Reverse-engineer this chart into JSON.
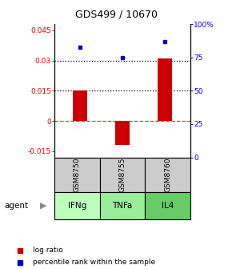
{
  "title": "GDS499 / 10670",
  "samples": [
    "GSM8750",
    "GSM8755",
    "GSM8760"
  ],
  "agents": [
    "IFNg",
    "TNFa",
    "IL4"
  ],
  "log_ratios": [
    0.015,
    -0.012,
    0.031
  ],
  "percentile_ranks": [
    83,
    75,
    87
  ],
  "bar_color": "#cc0000",
  "dot_color": "#0000cc",
  "ylim_left": [
    -0.018,
    0.048
  ],
  "ylim_right": [
    0,
    100
  ],
  "yticks_left": [
    -0.015,
    0,
    0.015,
    0.03,
    0.045
  ],
  "yticks_right": [
    0,
    25,
    50,
    75,
    100
  ],
  "ytick_labels_left": [
    "-0.015",
    "0",
    "0.015",
    "0.03",
    "0.045"
  ],
  "ytick_labels_right": [
    "0",
    "25",
    "50",
    "75",
    "100%"
  ],
  "hlines": [
    0.015,
    0.03
  ],
  "zero_line": 0,
  "sample_bg_color": "#cccccc",
  "agent_colors": [
    "#bbffbb",
    "#99ee99",
    "#66cc66"
  ],
  "bar_width": 0.35,
  "legend_log_ratio": "log ratio",
  "legend_percentile": "percentile rank within the sample"
}
